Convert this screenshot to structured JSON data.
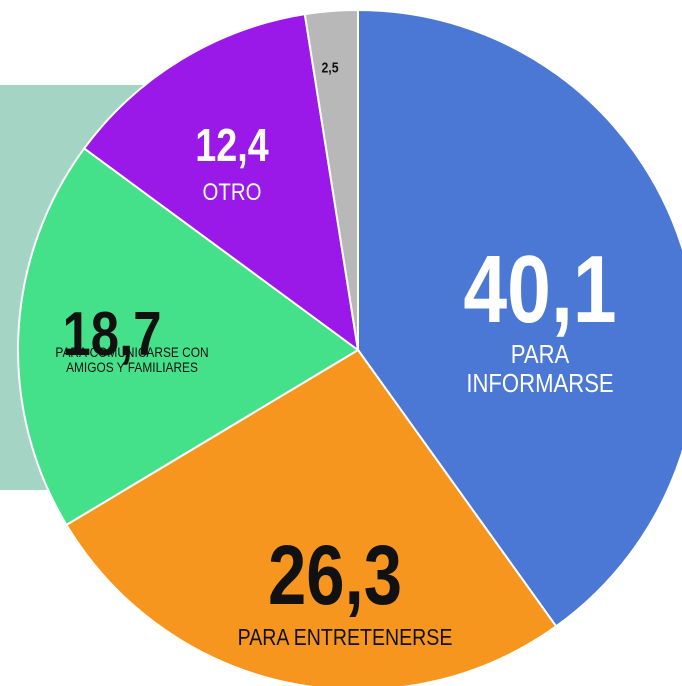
{
  "chart_data": {
    "type": "pie",
    "categories": [
      "PARA INFORMARSE",
      "PARA ENTRETENERSE",
      "PARA COMUNICARSE CON AMIGOS Y FAMILIARES",
      "OTRO",
      null
    ],
    "values": [
      40.1,
      26.3,
      18.7,
      12.4,
      2.5
    ],
    "value_labels": [
      "40,1",
      "26,3",
      "18,7",
      "12,4",
      "2,5"
    ],
    "colors": [
      "#4a78d4",
      "#f7961e",
      "#45e08a",
      "#9b19e8",
      "#b8b8b8"
    ]
  }
}
